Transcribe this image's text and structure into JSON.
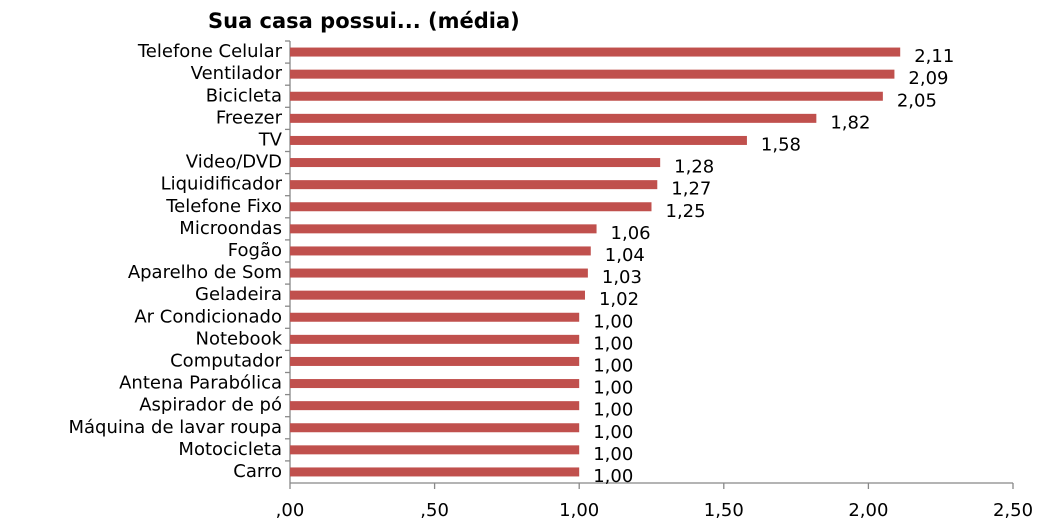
{
  "chart_data": {
    "type": "barh",
    "title": "Sua casa possui... (média)",
    "categories": [
      "Telefone Celular",
      "Ventilador",
      "Bicicleta",
      "Freezer",
      "TV",
      "Video/DVD",
      "Liquidificador",
      "Telefone Fixo",
      "Microondas",
      "Fogão",
      "Aparelho de Som",
      "Geladeira",
      "Ar Condicionado",
      "Notebook",
      "Computador",
      "Antena Parabólica",
      "Aspirador de pó",
      "Máquina de lavar roupa",
      "Motocicleta",
      "Carro"
    ],
    "values": [
      2.11,
      2.09,
      2.05,
      1.82,
      1.58,
      1.28,
      1.27,
      1.25,
      1.06,
      1.04,
      1.03,
      1.02,
      1.0,
      1.0,
      1.0,
      1.0,
      1.0,
      1.0,
      1.0,
      1.0
    ],
    "value_labels": [
      "2,11",
      "2,09",
      "2,05",
      "1,82",
      "1,58",
      "1,28",
      "1,27",
      "1,25",
      "1,06",
      "1,04",
      "1,03",
      "1,02",
      "1,00",
      "1,00",
      "1,00",
      "1,00",
      "1,00",
      "1,00",
      "1,00",
      "1,00"
    ],
    "color": "#c0504d",
    "xlim": [
      0,
      2.5
    ],
    "xticks": [
      {
        "value": 0,
        "label": ",00"
      },
      {
        "value": 0.5,
        "label": ",50"
      },
      {
        "value": 1,
        "label": "1,00"
      },
      {
        "value": 1.5,
        "label": "1,50"
      },
      {
        "value": 2,
        "label": "2,00"
      },
      {
        "value": 2.5,
        "label": "2,50"
      }
    ],
    "grid": false
  }
}
